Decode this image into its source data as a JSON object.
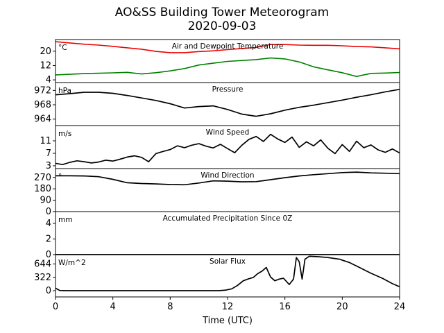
{
  "figure": {
    "title": "AO&SS Building Tower Meteorogram",
    "subtitle": "2020-09-03",
    "xlabel": "Time (UTC)"
  },
  "chart_data": [
    {
      "type": "line",
      "title": "Air and Dewpoint Temperature",
      "unit": "°C",
      "xlim": [
        0,
        24
      ],
      "ylim": [
        2.5,
        26.5
      ],
      "yticks": [
        4,
        12,
        20
      ],
      "series": [
        {
          "color": "#ee0000",
          "x": [
            0,
            1,
            2,
            3,
            4,
            5,
            6,
            7,
            8,
            9,
            10,
            11,
            12,
            13,
            14,
            15,
            16,
            17,
            18,
            19,
            20,
            21,
            22,
            23,
            24
          ],
          "y": [
            25.3,
            24.6,
            23.9,
            23.4,
            22.7,
            21.9,
            21.1,
            19.9,
            19.2,
            19.2,
            19.8,
            20.2,
            20.9,
            21.5,
            22.1,
            23.8,
            23.7,
            23.4,
            23.3,
            23.3,
            23.0,
            22.6,
            22.4,
            21.9,
            21.3
          ]
        },
        {
          "color": "#008000",
          "x": [
            0,
            1,
            2,
            3,
            4,
            5,
            6,
            7,
            8,
            9,
            10,
            11,
            12,
            13,
            14,
            15,
            16,
            17,
            18,
            19,
            20,
            21,
            22,
            23,
            24
          ],
          "y": [
            6.8,
            7.1,
            7.5,
            7.7,
            7.9,
            8.2,
            7.3,
            8.0,
            9.0,
            10.3,
            12.3,
            13.3,
            14.3,
            14.8,
            15.3,
            16.2,
            15.7,
            14.0,
            11.3,
            9.6,
            8.0,
            5.9,
            7.6,
            7.8,
            8.1
          ]
        }
      ]
    },
    {
      "type": "line",
      "title": "Pressure",
      "unit": "hPa",
      "xlim": [
        0,
        24
      ],
      "ylim": [
        962.2,
        974.2
      ],
      "yticks": [
        964,
        968,
        972
      ],
      "series": [
        {
          "color": "#000000",
          "x": [
            0,
            1,
            2,
            3,
            4,
            5,
            6,
            7,
            8,
            9,
            10,
            11,
            12,
            13,
            14,
            15,
            16,
            17,
            18,
            19,
            20,
            21,
            22,
            23,
            24
          ],
          "y": [
            970.8,
            971.1,
            971.5,
            971.5,
            971.2,
            970.6,
            969.9,
            969.2,
            968.3,
            967.1,
            967.5,
            967.7,
            966.7,
            965.4,
            964.8,
            965.5,
            966.5,
            967.3,
            967.9,
            968.6,
            969.3,
            970.1,
            970.8,
            971.6,
            972.3
          ]
        }
      ]
    },
    {
      "type": "line",
      "title": "Wind Speed",
      "unit": "m/s",
      "xlim": [
        0,
        24
      ],
      "ylim": [
        2.1,
        15.9
      ],
      "yticks": [
        3,
        7,
        11
      ],
      "series": [
        {
          "color": "#000000",
          "x": [
            0,
            0.5,
            1,
            1.5,
            2,
            2.5,
            3,
            3.5,
            4,
            4.5,
            5,
            5.5,
            6,
            6.5,
            7,
            7.5,
            8,
            8.5,
            9,
            9.5,
            10,
            10.5,
            11,
            11.5,
            12,
            12.5,
            13,
            13.5,
            14,
            14.5,
            15,
            15.5,
            16,
            16.5,
            17,
            17.5,
            18,
            18.5,
            19,
            19.5,
            20,
            20.5,
            21,
            21.5,
            22,
            22.5,
            23,
            23.5,
            24
          ],
          "y": [
            3.8,
            3.4,
            4.1,
            4.6,
            4.3,
            3.9,
            4.2,
            4.8,
            4.5,
            5.1,
            5.8,
            6.2,
            5.7,
            4.3,
            6.9,
            7.6,
            8.2,
            9.4,
            8.8,
            9.6,
            10.1,
            9.3,
            8.7,
            9.9,
            8.5,
            7.2,
            9.6,
            11.5,
            12.4,
            10.8,
            13.1,
            11.6,
            10.5,
            12.2,
            8.9,
            10.7,
            9.4,
            11.3,
            8.6,
            6.9,
            9.8,
            7.6,
            10.9,
            8.8,
            9.7,
            8.1,
            7.3,
            8.4,
            7.1
          ]
        }
      ]
    },
    {
      "type": "line",
      "title": "Wind Direction",
      "unit": "°",
      "xlim": [
        0,
        24
      ],
      "ylim": [
        0,
        340
      ],
      "yticks": [
        0,
        90,
        180,
        270
      ],
      "series": [
        {
          "color": "#000000",
          "x": [
            0,
            1,
            2,
            3,
            4,
            5,
            6,
            7,
            8,
            9,
            10,
            11,
            12,
            13,
            14,
            15,
            16,
            17,
            18,
            19,
            20,
            21,
            22,
            23,
            24
          ],
          "y": [
            283,
            283,
            282,
            276,
            255,
            228,
            222,
            219,
            214,
            212,
            226,
            243,
            241,
            235,
            237,
            252,
            268,
            282,
            292,
            300,
            308,
            312,
            306,
            303,
            300
          ]
        }
      ]
    },
    {
      "type": "line",
      "title": "Accumulated Precipitation Since 0Z",
      "unit": "mm",
      "xlim": [
        0,
        24
      ],
      "ylim": [
        0,
        5.5
      ],
      "yticks": [
        0,
        2,
        4
      ],
      "series": [
        {
          "color": "#000000",
          "x": [
            0,
            24
          ],
          "y": [
            0,
            0
          ]
        }
      ]
    },
    {
      "type": "line",
      "title": "Solar Flux",
      "unit": "W/m^2",
      "xlim": [
        0,
        24
      ],
      "ylim": [
        -150,
        870
      ],
      "yticks": [
        0,
        322,
        644
      ],
      "xticks": [
        0,
        4,
        8,
        12,
        16,
        20,
        24
      ],
      "series": [
        {
          "color": "#000000",
          "x": [
            0,
            0.3,
            0.8,
            3,
            6,
            9,
            11.4,
            11.9,
            12.3,
            12.7,
            13.1,
            13.5,
            13.8,
            14.1,
            14.4,
            14.7,
            15.0,
            15.3,
            15.6,
            15.9,
            16.3,
            16.6,
            16.8,
            17.0,
            17.2,
            17.4,
            17.7,
            18.3,
            19.0,
            19.8,
            20.5,
            21.2,
            22.0,
            22.8,
            23.5,
            24.0
          ],
          "y": [
            60,
            5,
            0,
            0,
            0,
            0,
            0,
            15,
            45,
            130,
            240,
            290,
            320,
            410,
            470,
            560,
            330,
            240,
            280,
            300,
            150,
            280,
            800,
            700,
            280,
            760,
            830,
            820,
            800,
            760,
            680,
            560,
            420,
            300,
            170,
            95
          ]
        }
      ]
    }
  ]
}
